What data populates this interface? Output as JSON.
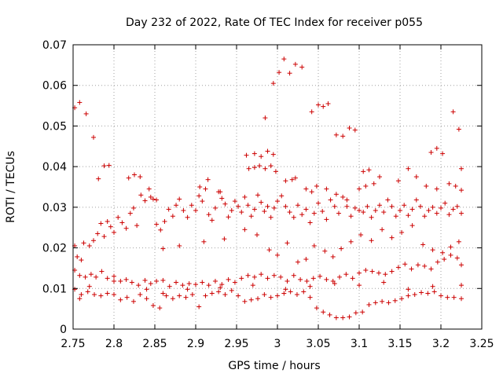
{
  "chart_data": {
    "type": "scatter",
    "title": "Day 232 of 2022, Rate Of TEC Index for receiver p055",
    "xlabel": "GPS time / hours",
    "ylabel": "ROTI / TECUs",
    "xlim": [
      2.75,
      3.25
    ],
    "ylim": [
      0,
      0.07
    ],
    "x_ticks": [
      "2.75",
      "2.8",
      "2.85",
      "2.9",
      "2.95",
      "3",
      "3.05",
      "3.1",
      "3.15",
      "3.2",
      "3.25"
    ],
    "y_ticks": [
      "0",
      "0.01",
      "0.02",
      "0.03",
      "0.04",
      "0.05",
      "0.06",
      "0.07"
    ],
    "grid": true,
    "marker": "+",
    "color": "#cc0000",
    "points": [
      [
        2.752,
        0.0545
      ],
      [
        2.758,
        0.0558
      ],
      [
        2.766,
        0.053
      ],
      [
        2.775,
        0.0472
      ],
      [
        2.781,
        0.037
      ],
      [
        2.788,
        0.0402
      ],
      [
        2.794,
        0.0403
      ],
      [
        2.752,
        0.0205
      ],
      [
        2.755,
        0.0178
      ],
      [
        2.76,
        0.017
      ],
      [
        2.763,
        0.0212
      ],
      [
        2.77,
        0.0205
      ],
      [
        2.775,
        0.0218
      ],
      [
        2.78,
        0.0235
      ],
      [
        2.784,
        0.026
      ],
      [
        2.788,
        0.0228
      ],
      [
        2.792,
        0.0265
      ],
      [
        2.796,
        0.0252
      ],
      [
        2.8,
        0.0238
      ],
      [
        2.805,
        0.0275
      ],
      [
        2.81,
        0.0262
      ],
      [
        2.815,
        0.0248
      ],
      [
        2.82,
        0.0285
      ],
      [
        2.824,
        0.0298
      ],
      [
        2.828,
        0.0255
      ],
      [
        2.833,
        0.033
      ],
      [
        2.838,
        0.0316
      ],
      [
        2.843,
        0.0345
      ],
      [
        2.848,
        0.032
      ],
      [
        2.852,
        0.0258
      ],
      [
        2.857,
        0.0244
      ],
      [
        2.862,
        0.0265
      ],
      [
        2.867,
        0.0295
      ],
      [
        2.872,
        0.0278
      ],
      [
        2.876,
        0.0305
      ],
      [
        2.88,
        0.032
      ],
      [
        2.885,
        0.0292
      ],
      [
        2.89,
        0.0275
      ],
      [
        2.895,
        0.0305
      ],
      [
        2.9,
        0.0292
      ],
      [
        2.904,
        0.0328
      ],
      [
        2.908,
        0.0315
      ],
      [
        2.912,
        0.0345
      ],
      [
        2.916,
        0.0282
      ],
      [
        2.92,
        0.0268
      ],
      [
        2.924,
        0.0298
      ],
      [
        2.928,
        0.0338
      ],
      [
        2.932,
        0.0322
      ],
      [
        2.936,
        0.0308
      ],
      [
        2.94,
        0.0276
      ],
      [
        2.944,
        0.0292
      ],
      [
        2.948,
        0.0315
      ],
      [
        2.952,
        0.0302
      ],
      [
        2.956,
        0.0288
      ],
      [
        2.96,
        0.0325
      ],
      [
        2.964,
        0.0305
      ],
      [
        2.968,
        0.0278
      ],
      [
        2.972,
        0.0295
      ],
      [
        2.976,
        0.033
      ],
      [
        2.98,
        0.0312
      ],
      [
        2.984,
        0.029
      ],
      [
        2.988,
        0.0302
      ],
      [
        2.992,
        0.0275
      ],
      [
        2.996,
        0.0298
      ],
      [
        3.0,
        0.0315
      ],
      [
        3.005,
        0.0328
      ],
      [
        3.01,
        0.0302
      ],
      [
        3.015,
        0.0288
      ],
      [
        3.02,
        0.0275
      ],
      [
        3.025,
        0.0305
      ],
      [
        3.03,
        0.0282
      ],
      [
        3.035,
        0.0295
      ],
      [
        3.04,
        0.0262
      ],
      [
        3.045,
        0.0285
      ],
      [
        3.05,
        0.031
      ],
      [
        3.055,
        0.029
      ],
      [
        3.06,
        0.027
      ],
      [
        3.065,
        0.0318
      ],
      [
        3.07,
        0.0302
      ],
      [
        3.075,
        0.0285
      ],
      [
        3.08,
        0.0325
      ],
      [
        3.085,
        0.0302
      ],
      [
        3.09,
        0.0278
      ],
      [
        3.095,
        0.0298
      ],
      [
        3.1,
        0.0292
      ],
      [
        3.105,
        0.0288
      ],
      [
        3.11,
        0.0302
      ],
      [
        3.115,
        0.0275
      ],
      [
        3.12,
        0.0292
      ],
      [
        3.125,
        0.0305
      ],
      [
        3.13,
        0.0288
      ],
      [
        3.135,
        0.0318
      ],
      [
        3.14,
        0.0302
      ],
      [
        3.145,
        0.0278
      ],
      [
        3.15,
        0.0292
      ],
      [
        3.155,
        0.0305
      ],
      [
        3.16,
        0.028
      ],
      [
        3.165,
        0.0295
      ],
      [
        3.17,
        0.0318
      ],
      [
        3.175,
        0.0302
      ],
      [
        3.18,
        0.0278
      ],
      [
        3.185,
        0.0292
      ],
      [
        3.19,
        0.03
      ],
      [
        3.195,
        0.0285
      ],
      [
        3.2,
        0.0298
      ],
      [
        3.205,
        0.031
      ],
      [
        3.21,
        0.0282
      ],
      [
        3.215,
        0.0295
      ],
      [
        3.22,
        0.0302
      ],
      [
        3.225,
        0.0285
      ],
      [
        2.818,
        0.0372
      ],
      [
        2.825,
        0.038
      ],
      [
        2.832,
        0.0375
      ],
      [
        2.845,
        0.0325
      ],
      [
        2.852,
        0.0318
      ],
      [
        2.905,
        0.035
      ],
      [
        2.915,
        0.0368
      ],
      [
        2.93,
        0.0338
      ],
      [
        2.965,
        0.0395
      ],
      [
        2.972,
        0.0398
      ],
      [
        2.978,
        0.0402
      ],
      [
        2.985,
        0.0395
      ],
      [
        2.992,
        0.0402
      ],
      [
        2.998,
        0.0388
      ],
      [
        3.01,
        0.0365
      ],
      [
        3.018,
        0.0368
      ],
      [
        3.022,
        0.0372
      ],
      [
        3.035,
        0.0345
      ],
      [
        3.042,
        0.0338
      ],
      [
        3.048,
        0.0352
      ],
      [
        3.06,
        0.0345
      ],
      [
        3.072,
        0.0332
      ],
      [
        3.085,
        0.0318
      ],
      [
        3.1,
        0.0345
      ],
      [
        3.108,
        0.0352
      ],
      [
        3.118,
        0.0358
      ],
      [
        3.125,
        0.0375
      ],
      [
        3.148,
        0.0365
      ],
      [
        3.16,
        0.0395
      ],
      [
        3.17,
        0.0375
      ],
      [
        3.182,
        0.0352
      ],
      [
        3.195,
        0.0345
      ],
      [
        3.21,
        0.0358
      ],
      [
        3.218,
        0.0352
      ],
      [
        3.225,
        0.0342
      ],
      [
        2.962,
        0.0428
      ],
      [
        2.972,
        0.0432
      ],
      [
        2.98,
        0.0425
      ],
      [
        2.988,
        0.0438
      ],
      [
        2.995,
        0.043
      ],
      [
        3.042,
        0.0535
      ],
      [
        3.05,
        0.0552
      ],
      [
        3.056,
        0.0548
      ],
      [
        3.062,
        0.0555
      ],
      [
        3.072,
        0.0478
      ],
      [
        3.08,
        0.0475
      ],
      [
        3.088,
        0.0495
      ],
      [
        3.095,
        0.049
      ],
      [
        3.105,
        0.0388
      ],
      [
        3.112,
        0.0392
      ],
      [
        3.188,
        0.0435
      ],
      [
        3.195,
        0.0445
      ],
      [
        3.202,
        0.0432
      ],
      [
        3.215,
        0.0535
      ],
      [
        3.222,
        0.0492
      ],
      [
        3.225,
        0.0395
      ],
      [
        2.985,
        0.052
      ],
      [
        2.995,
        0.0605
      ],
      [
        3.002,
        0.0632
      ],
      [
        3.008,
        0.0665
      ],
      [
        3.015,
        0.063
      ],
      [
        3.022,
        0.0652
      ],
      [
        3.03,
        0.0645
      ],
      [
        2.752,
        0.0145
      ],
      [
        2.758,
        0.0132
      ],
      [
        2.765,
        0.0128
      ],
      [
        2.772,
        0.0135
      ],
      [
        2.778,
        0.0128
      ],
      [
        2.785,
        0.0142
      ],
      [
        2.792,
        0.0125
      ],
      [
        2.8,
        0.013
      ],
      [
        2.808,
        0.0118
      ],
      [
        2.815,
        0.0122
      ],
      [
        2.822,
        0.0115
      ],
      [
        2.83,
        0.0108
      ],
      [
        2.838,
        0.012
      ],
      [
        2.845,
        0.0112
      ],
      [
        2.852,
        0.0118
      ],
      [
        2.86,
        0.012
      ],
      [
        2.868,
        0.0105
      ],
      [
        2.876,
        0.0115
      ],
      [
        2.884,
        0.0108
      ],
      [
        2.892,
        0.0112
      ],
      [
        2.9,
        0.011
      ],
      [
        2.908,
        0.0115
      ],
      [
        2.916,
        0.0108
      ],
      [
        2.924,
        0.0118
      ],
      [
        2.932,
        0.011
      ],
      [
        2.94,
        0.0122
      ],
      [
        2.948,
        0.0115
      ],
      [
        2.956,
        0.0125
      ],
      [
        2.964,
        0.0132
      ],
      [
        2.972,
        0.0128
      ],
      [
        2.98,
        0.0135
      ],
      [
        2.988,
        0.0125
      ],
      [
        2.996,
        0.0132
      ],
      [
        3.004,
        0.0128
      ],
      [
        3.012,
        0.0118
      ],
      [
        3.02,
        0.0132
      ],
      [
        3.028,
        0.0122
      ],
      [
        3.036,
        0.0118
      ],
      [
        3.044,
        0.0125
      ],
      [
        3.052,
        0.013
      ],
      [
        3.06,
        0.0122
      ],
      [
        3.068,
        0.0118
      ],
      [
        3.076,
        0.0128
      ],
      [
        3.084,
        0.0135
      ],
      [
        3.092,
        0.0125
      ],
      [
        3.1,
        0.0138
      ],
      [
        3.108,
        0.0145
      ],
      [
        3.116,
        0.0142
      ],
      [
        3.124,
        0.0138
      ],
      [
        3.132,
        0.0135
      ],
      [
        3.14,
        0.0142
      ],
      [
        3.148,
        0.0152
      ],
      [
        3.156,
        0.016
      ],
      [
        3.164,
        0.0148
      ],
      [
        3.172,
        0.0158
      ],
      [
        3.18,
        0.0155
      ],
      [
        3.188,
        0.0148
      ],
      [
        3.196,
        0.0165
      ],
      [
        3.204,
        0.0172
      ],
      [
        3.212,
        0.0182
      ],
      [
        3.22,
        0.0175
      ],
      [
        3.225,
        0.0158
      ],
      [
        2.752,
        0.0098
      ],
      [
        2.76,
        0.0085
      ],
      [
        2.768,
        0.0092
      ],
      [
        2.776,
        0.0085
      ],
      [
        2.784,
        0.0082
      ],
      [
        2.792,
        0.0088
      ],
      [
        2.8,
        0.0085
      ],
      [
        2.808,
        0.0072
      ],
      [
        2.816,
        0.0078
      ],
      [
        2.824,
        0.0068
      ],
      [
        2.832,
        0.0085
      ],
      [
        2.84,
        0.0075
      ],
      [
        2.848,
        0.0058
      ],
      [
        2.856,
        0.0052
      ],
      [
        2.864,
        0.0082
      ],
      [
        2.872,
        0.0075
      ],
      [
        2.88,
        0.0082
      ],
      [
        2.888,
        0.0078
      ],
      [
        2.896,
        0.0085
      ],
      [
        2.904,
        0.0055
      ],
      [
        2.912,
        0.0082
      ],
      [
        2.92,
        0.0088
      ],
      [
        2.928,
        0.0092
      ],
      [
        2.936,
        0.0085
      ],
      [
        2.944,
        0.0095
      ],
      [
        2.952,
        0.0082
      ],
      [
        2.96,
        0.0068
      ],
      [
        2.968,
        0.0072
      ],
      [
        2.976,
        0.0075
      ],
      [
        2.984,
        0.0085
      ],
      [
        2.992,
        0.0078
      ],
      [
        3.0,
        0.0082
      ],
      [
        3.008,
        0.0088
      ],
      [
        3.016,
        0.0092
      ],
      [
        3.024,
        0.0085
      ],
      [
        3.032,
        0.0092
      ],
      [
        3.04,
        0.0078
      ],
      [
        3.048,
        0.0052
      ],
      [
        3.056,
        0.0042
      ],
      [
        3.064,
        0.0035
      ],
      [
        3.072,
        0.0028
      ],
      [
        3.08,
        0.0028
      ],
      [
        3.088,
        0.003
      ],
      [
        3.096,
        0.004
      ],
      [
        3.104,
        0.0042
      ],
      [
        3.112,
        0.006
      ],
      [
        3.12,
        0.0065
      ],
      [
        3.128,
        0.0068
      ],
      [
        3.136,
        0.0065
      ],
      [
        3.144,
        0.007
      ],
      [
        3.152,
        0.0075
      ],
      [
        3.16,
        0.0082
      ],
      [
        3.168,
        0.0085
      ],
      [
        3.176,
        0.009
      ],
      [
        3.184,
        0.0088
      ],
      [
        3.192,
        0.0092
      ],
      [
        3.2,
        0.0082
      ],
      [
        3.208,
        0.0078
      ],
      [
        3.216,
        0.0078
      ],
      [
        3.225,
        0.0075
      ],
      [
        2.758,
        0.0075
      ],
      [
        2.77,
        0.0105
      ],
      [
        2.8,
        0.0118
      ],
      [
        2.84,
        0.0098
      ],
      [
        2.86,
        0.0088
      ],
      [
        2.89,
        0.0098
      ],
      [
        2.93,
        0.0102
      ],
      [
        2.97,
        0.0108
      ],
      [
        3.01,
        0.0098
      ],
      [
        3.04,
        0.0105
      ],
      [
        3.07,
        0.0112
      ],
      [
        3.1,
        0.0108
      ],
      [
        3.13,
        0.0115
      ],
      [
        3.16,
        0.0098
      ],
      [
        3.19,
        0.0105
      ],
      [
        3.225,
        0.0108
      ],
      [
        2.86,
        0.0198
      ],
      [
        2.88,
        0.0205
      ],
      [
        2.91,
        0.0215
      ],
      [
        2.935,
        0.0222
      ],
      [
        2.96,
        0.0245
      ],
      [
        2.975,
        0.0232
      ],
      [
        2.99,
        0.0195
      ],
      [
        3.0,
        0.0182
      ],
      [
        3.012,
        0.0212
      ],
      [
        3.025,
        0.0165
      ],
      [
        3.035,
        0.0172
      ],
      [
        3.045,
        0.0205
      ],
      [
        3.058,
        0.0192
      ],
      [
        3.068,
        0.0178
      ],
      [
        3.078,
        0.0198
      ],
      [
        3.09,
        0.0215
      ],
      [
        3.102,
        0.0232
      ],
      [
        3.115,
        0.0218
      ],
      [
        3.128,
        0.0245
      ],
      [
        3.14,
        0.0225
      ],
      [
        3.152,
        0.0238
      ],
      [
        3.165,
        0.0255
      ],
      [
        3.178,
        0.0208
      ],
      [
        3.19,
        0.0195
      ],
      [
        3.202,
        0.0188
      ],
      [
        3.212,
        0.0202
      ],
      [
        3.222,
        0.0215
      ]
    ]
  }
}
